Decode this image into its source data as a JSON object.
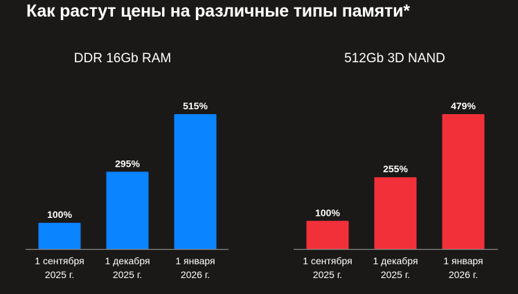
{
  "title": "Как растут цены на различные типы памяти*",
  "chart_data": [
    {
      "type": "bar",
      "title": "DDR 16Gb RAM",
      "categories": [
        [
          "1 сентября",
          "2025 г."
        ],
        [
          "1 декабря",
          "2025 г."
        ],
        [
          "1 января",
          "2026 г."
        ]
      ],
      "values": [
        100,
        295,
        515
      ],
      "value_labels": [
        "100%",
        "295%",
        "515%"
      ],
      "ylim": [
        0,
        515
      ],
      "color": "#0a84ff",
      "grid": false,
      "legend": false
    },
    {
      "type": "bar",
      "title": "512Gb 3D NAND",
      "categories": [
        [
          "1 сентября",
          "2025 г."
        ],
        [
          "1 декабря",
          "2025 г."
        ],
        [
          "1 января",
          "2026 г."
        ]
      ],
      "values": [
        100,
        255,
        479
      ],
      "value_labels": [
        "100%",
        "255%",
        "479%"
      ],
      "ylim": [
        0,
        479
      ],
      "color": "#f2303a",
      "grid": false,
      "legend": false
    }
  ]
}
